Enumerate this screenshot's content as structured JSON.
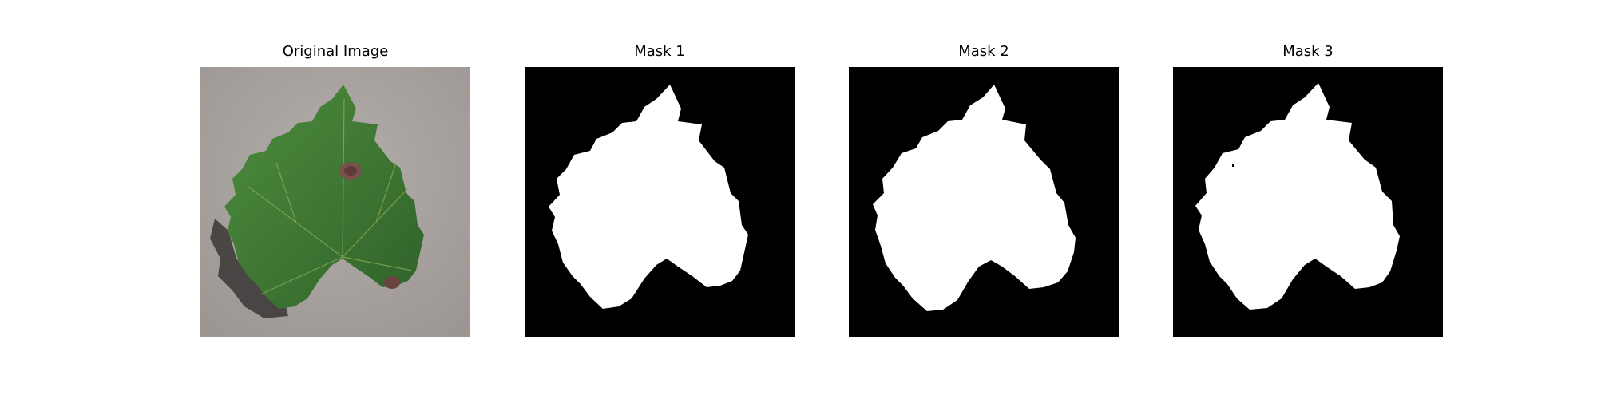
{
  "panels": [
    {
      "title": "Original Image",
      "kind": "photo"
    },
    {
      "title": "Mask 1",
      "kind": "mask"
    },
    {
      "title": "Mask 2",
      "kind": "mask"
    },
    {
      "title": "Mask 3",
      "kind": "mask"
    }
  ],
  "colors": {
    "background": "#ffffff",
    "mask_background": "#000000",
    "mask_foreground": "#ffffff",
    "ground": "#a9a3a0",
    "leaf": "#3f7a35",
    "leaf_dark": "#2d5c27",
    "lesion": "#7a4f4c"
  }
}
